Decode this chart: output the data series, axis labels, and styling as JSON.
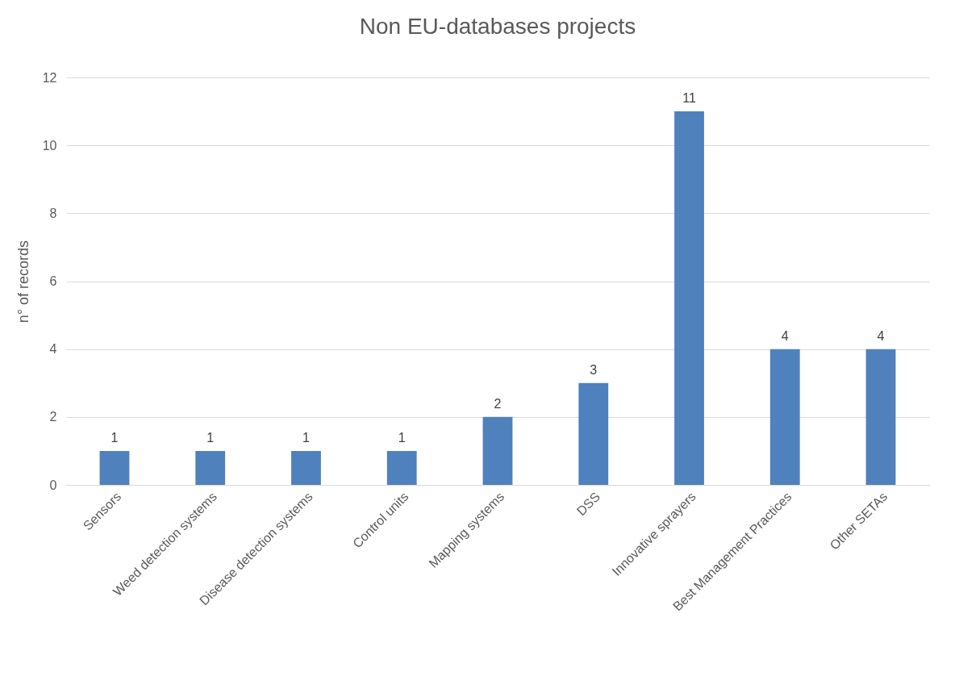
{
  "chart_data": {
    "type": "bar",
    "title": "Non EU-databases projects",
    "ylabel": "n° of records",
    "categories": [
      "Sensors",
      "Weed detection systems",
      "Disease detection systems",
      "Control units",
      "Mapping systems",
      "DSS",
      "Innovative sprayers",
      "Best Management Practices",
      "Other SETAs"
    ],
    "values": [
      1,
      1,
      1,
      1,
      2,
      3,
      11,
      4,
      4
    ],
    "color": "#4f81bd",
    "ylim": [
      0,
      12
    ],
    "yticks": [
      0,
      2,
      4,
      6,
      8,
      10,
      12
    ],
    "grid": "y",
    "data_labels": true
  }
}
